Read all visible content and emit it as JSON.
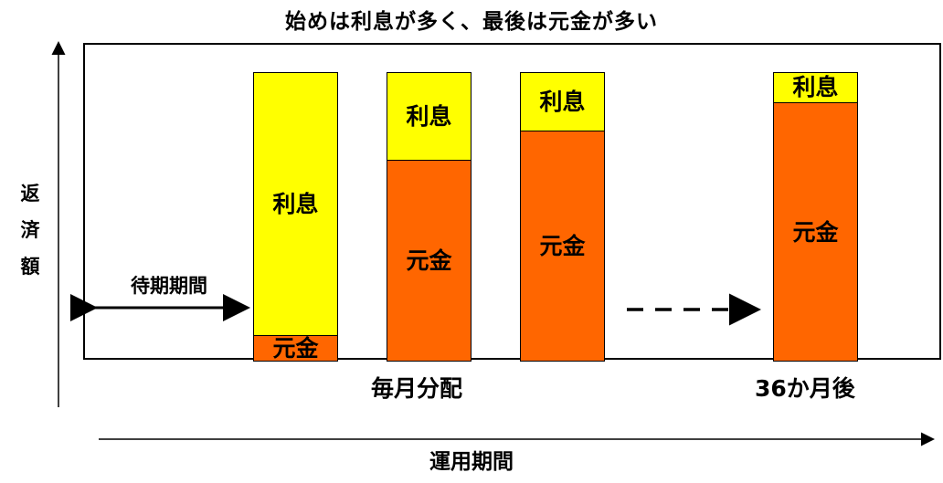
{
  "title": "始めは利息が多く、最後は元金が多い",
  "y_axis_label": [
    "返",
    "済",
    "額"
  ],
  "x_axis_label": "運用期間",
  "waiting_label": "待期期間",
  "monthly_label": "毎月分配",
  "final_label": "36か月後",
  "segment_labels": {
    "interest": "利息",
    "principal": "元金"
  },
  "bars": [
    {
      "interest_share": 0.91,
      "principal_share": 0.09
    },
    {
      "interest_share": 0.3,
      "principal_share": 0.7
    },
    {
      "interest_share": 0.2,
      "principal_share": 0.8
    },
    {
      "interest_share": 0.1,
      "principal_share": 0.9
    }
  ],
  "colors": {
    "interest": "#ffff00",
    "principal": "#ff6600",
    "line": "#000000"
  }
}
